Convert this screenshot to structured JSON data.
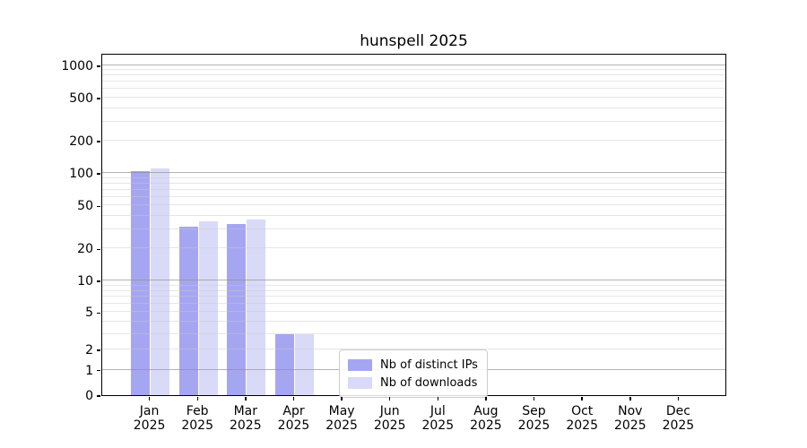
{
  "title": "hunspell 2025",
  "chart_data": {
    "type": "bar",
    "title": "hunspell 2025",
    "categories": [
      "Jan",
      "Feb",
      "Mar",
      "Apr",
      "May",
      "Jun",
      "Jul",
      "Aug",
      "Sep",
      "Oct",
      "Nov",
      "Dec"
    ],
    "category_year_label": "2025",
    "series": [
      {
        "name": "Nb of distinct IPs",
        "color": "#a5a6f2",
        "values": [
          105,
          32,
          34,
          3,
          0,
          0,
          0,
          0,
          0,
          0,
          0,
          0
        ]
      },
      {
        "name": "Nb of downloads",
        "color": "#d9daf8",
        "values": [
          111,
          36,
          37,
          3,
          0,
          0,
          0,
          0,
          0,
          0,
          0,
          0
        ]
      }
    ],
    "y_ticks": [
      0,
      1,
      2,
      5,
      10,
      20,
      50,
      100,
      200,
      500,
      1000
    ],
    "y_scale": "asinh",
    "y_linear_width": 1.75,
    "ylim": [
      0,
      1300
    ],
    "xlim": [
      -1,
      12
    ],
    "grid": {
      "major_lines": [
        1,
        10,
        100,
        1000
      ],
      "minor_multipliers": [
        2,
        3,
        4,
        5,
        6,
        7,
        8,
        9
      ],
      "minor_decades": [
        1,
        10,
        100
      ],
      "major_color": "#b0b0b0",
      "minor_color": "#e7e7e7"
    },
    "legend": {
      "position": "lower center",
      "entries": [
        "Nb of distinct IPs",
        "Nb of downloads"
      ]
    }
  }
}
